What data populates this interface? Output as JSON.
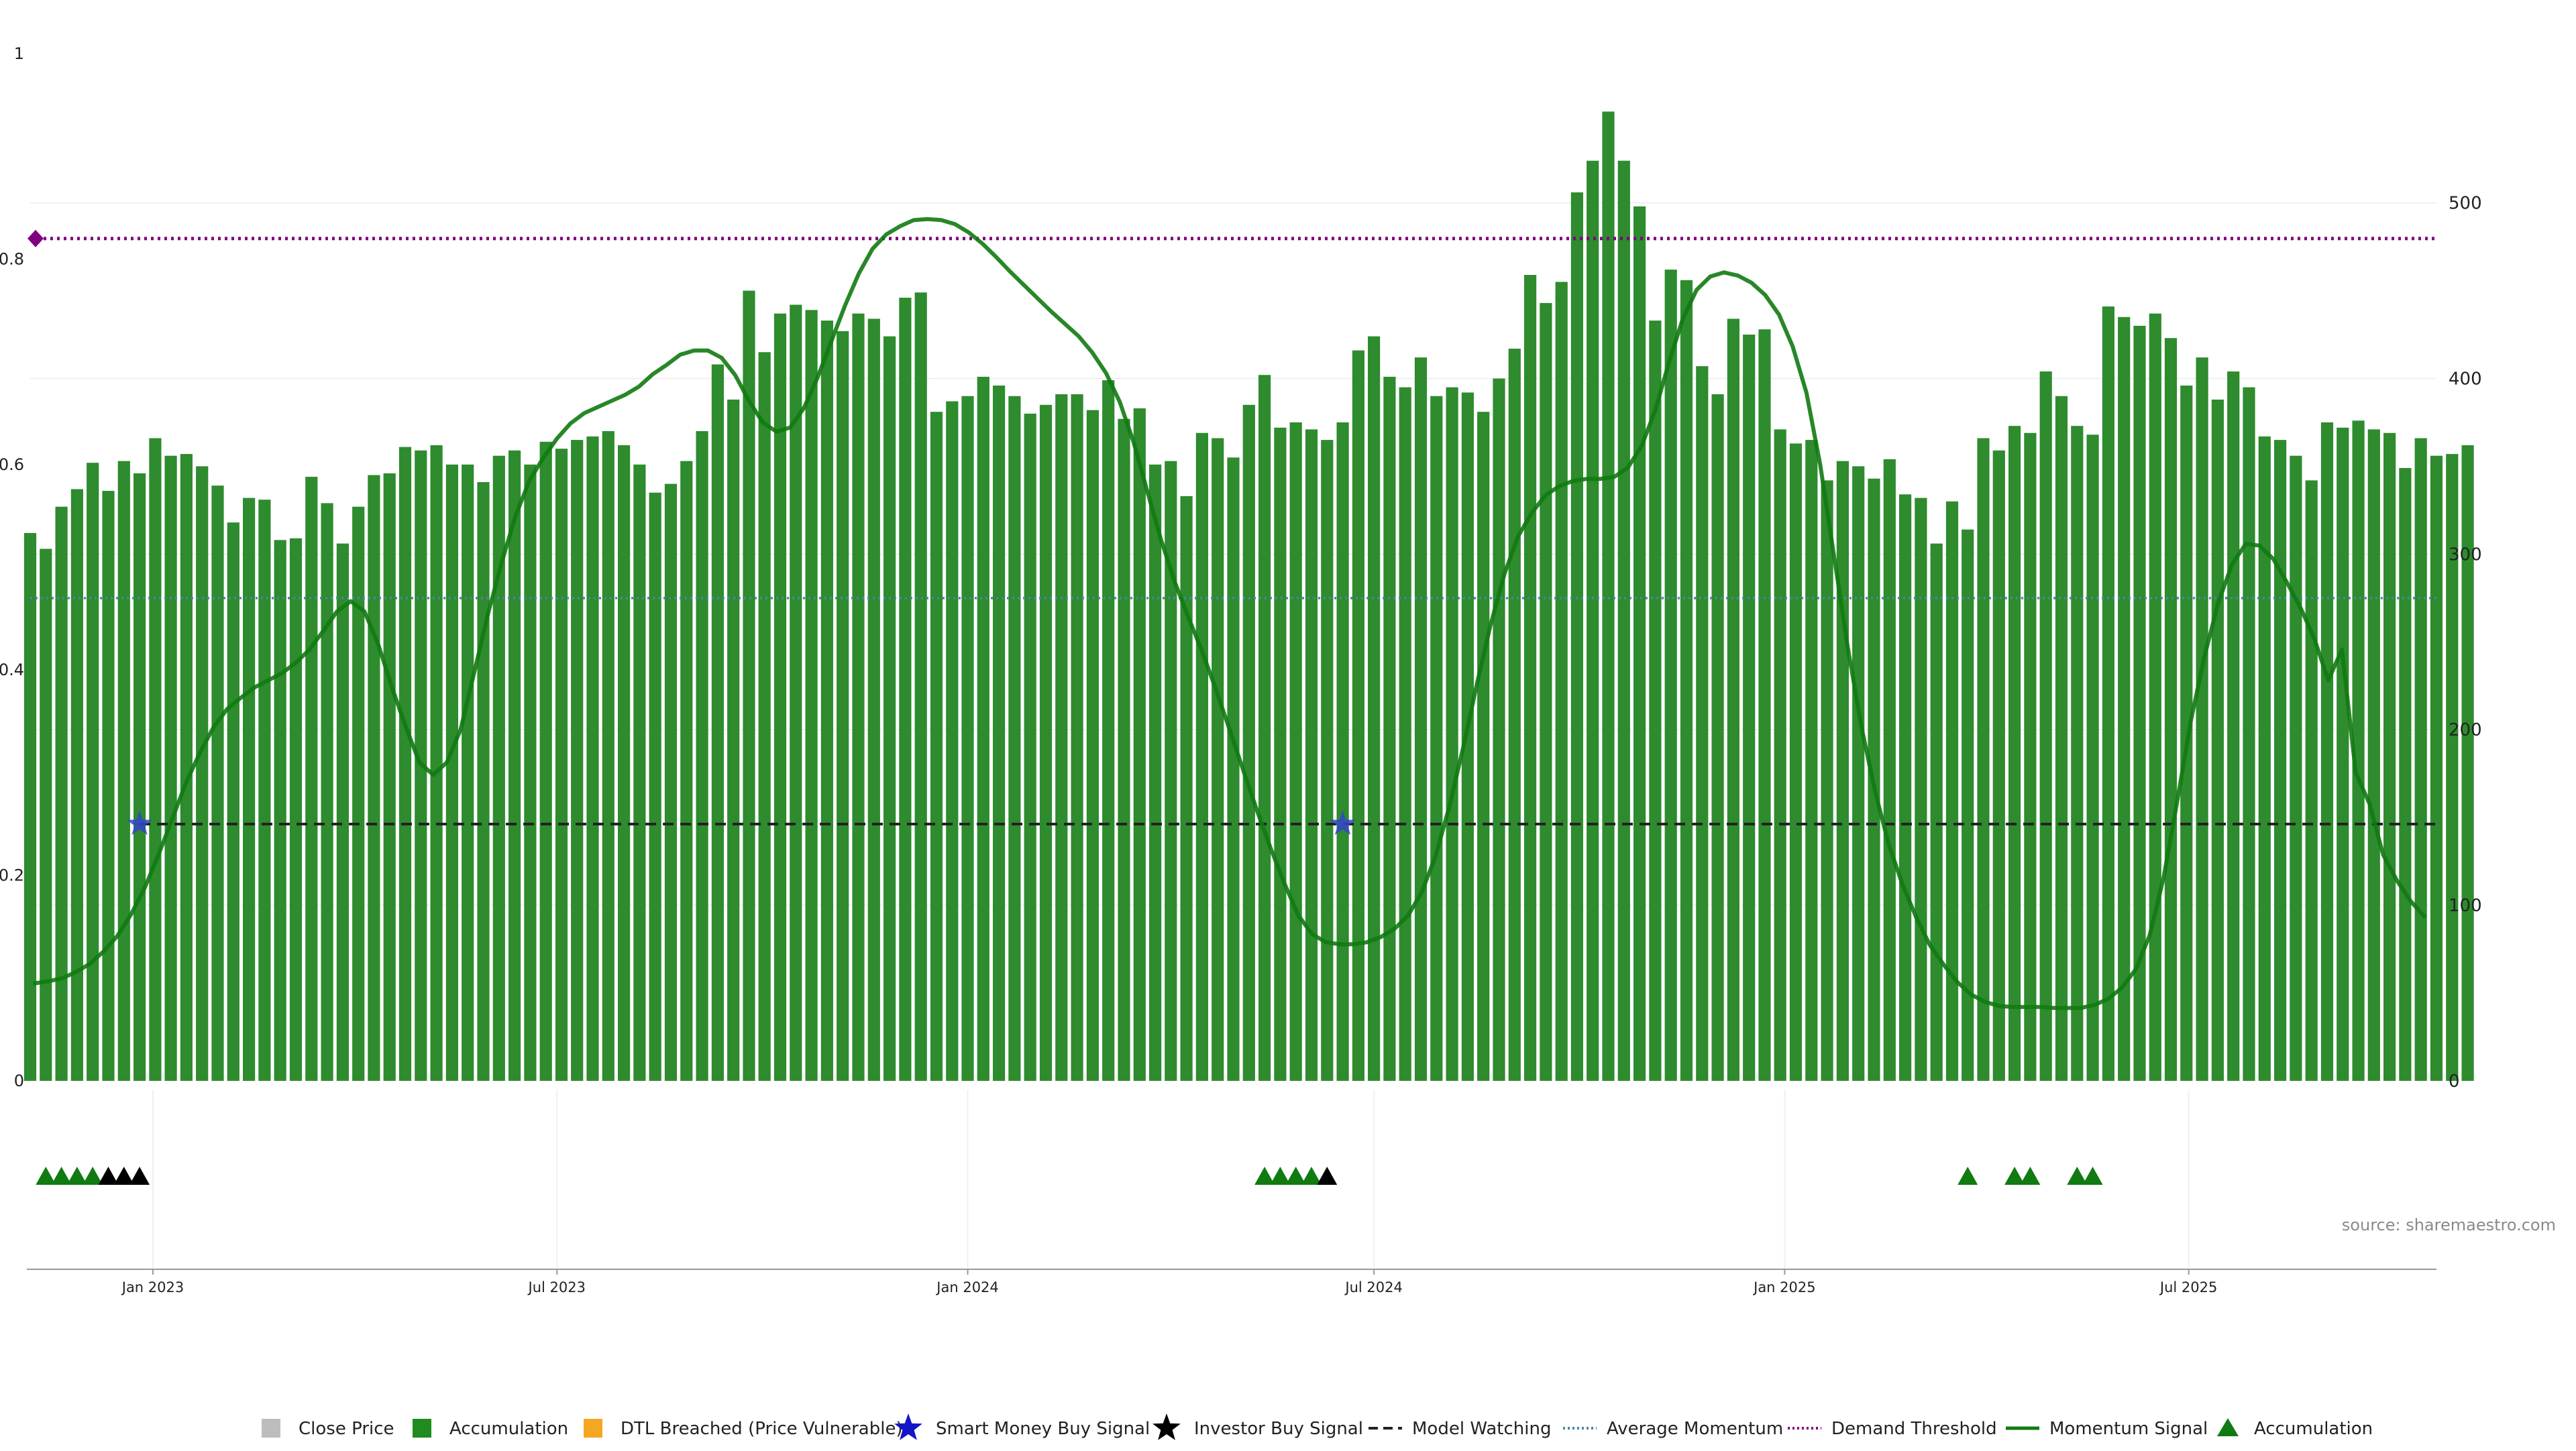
{
  "source_note": "source: sharemaestro.com",
  "left_axis": {
    "range": [
      0,
      1
    ],
    "ticks": [
      0,
      0.2,
      0.4,
      0.6,
      0.8,
      1
    ],
    "labels": [
      "0",
      "0.2",
      "0.4",
      "0.6",
      "0.8",
      "1"
    ]
  },
  "right_axis": {
    "range": [
      0,
      585
    ],
    "ticks": [
      0,
      100,
      200,
      300,
      400,
      500
    ],
    "labels": [
      "0",
      "100",
      "200",
      "300",
      "400",
      "500"
    ]
  },
  "x_axis": {
    "start": "2022-11-07",
    "end": "2025-10-20",
    "ticks": [
      "2023-01-01",
      "2023-07-01",
      "2024-01-01",
      "2024-07-01",
      "2025-01-01",
      "2025-07-01"
    ],
    "labels": [
      "Jan 2023",
      "Jul 2023",
      "Jan 2024",
      "Jul 2024",
      "Jan 2025",
      "Jul 2025"
    ]
  },
  "legend": [
    {
      "label": "Close Price",
      "marker": "square",
      "color": "#bdbdbd"
    },
    {
      "label": "Accumulation",
      "marker": "square",
      "color": "#1f8c1f"
    },
    {
      "label": "DTL Breached (Price Vulnerable)",
      "marker": "square",
      "color": "#f5a623"
    },
    {
      "label": "Smart Money Buy Signal",
      "marker": "star",
      "color": "#1414c8"
    },
    {
      "label": "Investor Buy Signal",
      "marker": "star",
      "color": "#000000"
    },
    {
      "label": "Model Watching",
      "marker": "dash",
      "color": "#222222"
    },
    {
      "label": "Average Momentum",
      "marker": "dotted",
      "color": "#4a86a8"
    },
    {
      "label": "Demand Threshold",
      "marker": "dotted",
      "color": "#800080"
    },
    {
      "label": "Momentum Signal",
      "marker": "line",
      "color": "#117a11"
    },
    {
      "label": "Accumulation",
      "marker": "triangle",
      "color": "#117a11"
    }
  ],
  "colors": {
    "close": "#c4c4c4",
    "accumulation": "#2e8b2e",
    "dtl": "#ffd37f",
    "momentum": "#117a11",
    "average": "#4a86a8",
    "demand": "#800080",
    "watching": "#222222",
    "smart_money": "#3344cc",
    "investor": "#000000"
  },
  "chart_data": {
    "type": "bar",
    "x_start": "2022-11-07",
    "x_step_days": 7,
    "close_price": [
      312,
      303,
      327,
      337,
      352,
      336,
      353,
      346,
      366,
      356,
      357,
      350,
      339,
      318,
      332,
      331,
      308,
      309,
      344,
      329,
      306,
      327,
      345,
      346,
      361,
      359,
      362,
      351,
      351,
      341,
      356,
      359,
      351,
      364,
      360,
      365,
      367,
      370,
      362,
      351,
      335,
      340,
      353,
      370,
      408,
      388,
      450,
      415,
      437,
      442,
      439,
      433,
      427,
      437,
      434,
      424,
      446,
      449,
      381,
      387,
      390,
      401,
      396,
      390,
      380,
      385,
      391,
      391,
      382,
      399,
      377,
      383,
      351,
      353,
      333,
      369,
      366,
      355,
      385,
      402,
      372,
      375,
      371,
      365,
      375,
      416,
      424,
      401,
      395,
      412,
      390,
      395,
      392,
      381,
      400,
      417,
      459,
      443,
      455,
      506,
      524,
      552,
      524,
      498,
      433,
      462,
      456,
      407,
      391,
      434,
      425,
      428,
      371,
      363,
      365,
      342,
      353,
      350,
      343,
      354,
      334,
      332,
      306,
      330,
      314,
      366,
      359,
      373,
      369,
      404,
      390,
      373,
      368,
      441,
      435,
      430,
      437,
      423,
      396,
      412,
      388,
      404,
      395,
      367,
      365,
      356,
      342,
      375,
      372,
      376,
      371,
      369,
      349,
      366,
      356,
      357,
      362
    ],
    "bar_state": "AAAAAAAAAAAAAAAAAAAAAAAAAAAAAAAAAAAAAAAAAAAAAAAAAAAAAAAAAAAAAAAAAAAAAAAAAAAAAAAAAAAAAAAAAAAAAAAAAAAAAAAAAAAAAAAAAAAAAAAAAAAAAAAAAAAAAAAAAAAAAAAAAAAAAAAAAAAAAA",
    "momentum_signal": [
      0.095,
      0.097,
      0.1,
      0.106,
      0.114,
      0.126,
      0.141,
      0.162,
      0.188,
      0.22,
      0.255,
      0.29,
      0.319,
      0.344,
      0.362,
      0.373,
      0.383,
      0.39,
      0.397,
      0.407,
      0.42,
      0.438,
      0.457,
      0.467,
      0.457,
      0.425,
      0.383,
      0.345,
      0.31,
      0.298,
      0.31,
      0.342,
      0.398,
      0.455,
      0.505,
      0.55,
      0.584,
      0.606,
      0.625,
      0.64,
      0.65,
      0.656,
      0.662,
      0.668,
      0.676,
      0.688,
      0.697,
      0.707,
      0.711,
      0.711,
      0.704,
      0.687,
      0.662,
      0.641,
      0.632,
      0.636,
      0.655,
      0.685,
      0.72,
      0.755,
      0.786,
      0.81,
      0.824,
      0.832,
      0.838,
      0.839,
      0.838,
      0.834,
      0.826,
      0.815,
      0.802,
      0.788,
      0.775,
      0.762,
      0.749,
      0.737,
      0.725,
      0.709,
      0.689,
      0.661,
      0.622,
      0.574,
      0.527,
      0.486,
      0.451,
      0.418,
      0.381,
      0.342,
      0.302,
      0.263,
      0.226,
      0.192,
      0.161,
      0.143,
      0.135,
      0.133,
      0.133,
      0.135,
      0.14,
      0.148,
      0.161,
      0.184,
      0.219,
      0.267,
      0.324,
      0.386,
      0.444,
      0.493,
      0.53,
      0.553,
      0.57,
      0.579,
      0.584,
      0.586,
      0.586,
      0.588,
      0.597,
      0.618,
      0.653,
      0.7,
      0.742,
      0.77,
      0.783,
      0.787,
      0.784,
      0.777,
      0.765,
      0.746,
      0.715,
      0.67,
      0.6,
      0.512,
      0.423,
      0.345,
      0.282,
      0.23,
      0.191,
      0.159,
      0.132,
      0.113,
      0.096,
      0.084,
      0.077,
      0.073,
      0.072,
      0.072,
      0.072,
      0.071,
      0.071,
      0.071,
      0.074,
      0.08,
      0.091,
      0.109,
      0.142,
      0.197
    ],
    "momentum_tail": [
      0.272,
      0.351,
      0.414,
      0.466,
      0.503,
      0.523,
      0.521,
      0.508,
      0.485,
      0.46,
      0.43,
      0.39,
      0.42,
      0.3,
      0.27,
      0.22,
      0.195,
      0.175,
      0.16
    ],
    "average_momentum": 0.47,
    "demand_threshold": 0.82,
    "model_watching": {
      "value": 0.25,
      "from": "2022-12-26"
    },
    "smart_money_signals": [
      {
        "date": "2022-12-26",
        "value": 0.25
      },
      {
        "date": "2024-06-17",
        "value": 0.25
      }
    ],
    "demand_marker": {
      "date": "2022-11-07",
      "value": 0.82
    },
    "accumulation_triangles": [
      "2022-11-14",
      "2022-11-21",
      "2022-11-28",
      "2022-12-05",
      "2024-05-13",
      "2024-05-20",
      "2024-05-27",
      "2024-06-03",
      "2025-03-24",
      "2025-04-14",
      "2025-04-21",
      "2025-05-12",
      "2025-05-19"
    ],
    "investor_triangles": [
      "2022-12-12",
      "2022-12-19",
      "2022-12-26",
      "2024-06-10"
    ]
  }
}
